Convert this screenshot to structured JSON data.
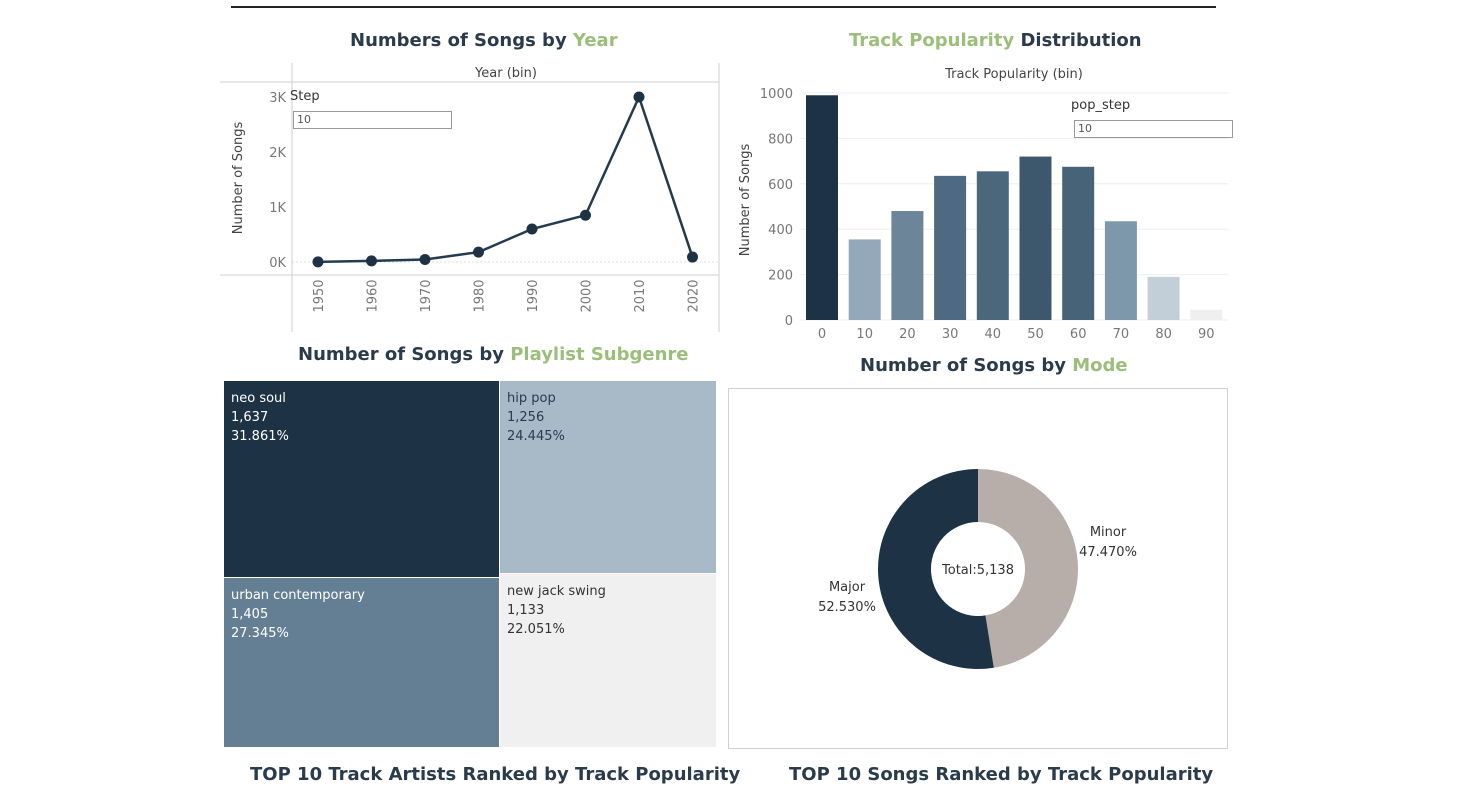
{
  "titles": {
    "year_prefix": "Numbers of Songs by ",
    "year_accent": "Year",
    "pop_accent": "Track Popularity",
    "pop_suffix": " Distribution",
    "subgenre_prefix": "Number of Songs by ",
    "subgenre_accent": "Playlist Subgenre",
    "mode_prefix": "Number of Songs by ",
    "mode_accent": "Mode",
    "artists": "TOP 10 Track Artists Ranked by Track Popularity",
    "songs": "TOP 10 Songs Ranked by Track Popularity"
  },
  "params": {
    "step_label": "Step",
    "step_value": "10",
    "pop_step_label": "pop_step",
    "pop_step_value": "10"
  },
  "colors": {
    "accent": "#9bbf7a",
    "dark": "#1e3246",
    "grey_taupe": "#b7aea9"
  },
  "chart_data": [
    {
      "type": "line",
      "title": "Numbers of Songs by Year",
      "xlabel": "Year (bin)",
      "ylabel": "Number of Songs",
      "x": [
        "1950",
        "1960",
        "1970",
        "1980",
        "1990",
        "2000",
        "2010",
        "2020"
      ],
      "values": [
        2,
        20,
        45,
        180,
        600,
        850,
        3000,
        90
      ],
      "ylim": [
        0,
        3000
      ],
      "yticks": [
        "0K",
        "1K",
        "2K",
        "3K"
      ],
      "grid": true
    },
    {
      "type": "bar",
      "title": "Track Popularity Distribution",
      "xlabel": "Track Popularity (bin)",
      "ylabel": "Number of Songs",
      "categories": [
        "0",
        "10",
        "20",
        "30",
        "40",
        "50",
        "60",
        "70",
        "80",
        "90"
      ],
      "values": [
        990,
        355,
        480,
        635,
        655,
        720,
        675,
        435,
        190,
        45
      ],
      "colors": [
        "#1e3246",
        "#93a9ba",
        "#6c8598",
        "#4e6a80",
        "#4b677c",
        "#3d586d",
        "#476378",
        "#7e98ab",
        "#c3cfd8",
        "#efefef"
      ],
      "ylim": [
        0,
        1000
      ],
      "yticks": [
        "0",
        "200",
        "400",
        "600",
        "800",
        "1000"
      ],
      "grid": true
    },
    {
      "type": "treemap",
      "title": "Number of Songs by Playlist Subgenre",
      "items": [
        {
          "name": "neo soul",
          "value": "1,637",
          "pct": "31.861%",
          "color": "#1e3246",
          "text": "#ffffff"
        },
        {
          "name": "hip pop",
          "value": "1,256",
          "pct": "24.445%",
          "color": "#a8b9c7",
          "text": "#2a3b4c"
        },
        {
          "name": "urban contemporary",
          "value": "1,405",
          "pct": "27.345%",
          "color": "#647f93",
          "text": "#ffffff"
        },
        {
          "name": "new jack swing",
          "value": "1,133",
          "pct": "22.051%",
          "color": "#f0f0f0",
          "text": "#333333"
        }
      ]
    },
    {
      "type": "pie",
      "title": "Number of Songs by Mode",
      "center_label": "Total:5,138",
      "slices": [
        {
          "name": "Minor",
          "pct_label": "47.470%",
          "value": 47.47,
          "color": "#b7aea9"
        },
        {
          "name": "Major",
          "pct_label": "52.530%",
          "value": 52.53,
          "color": "#1e3246"
        }
      ]
    }
  ]
}
